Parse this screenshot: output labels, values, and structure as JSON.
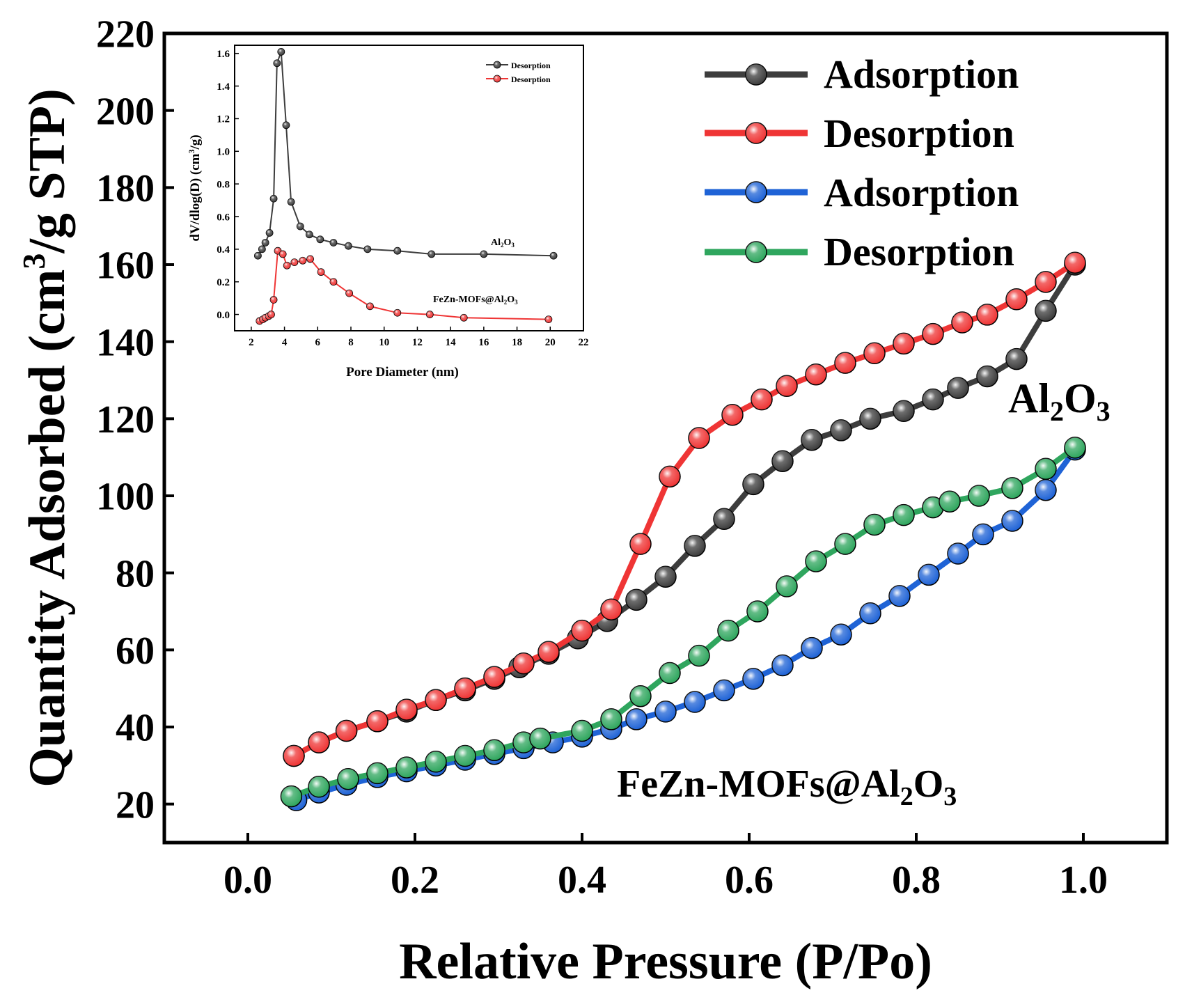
{
  "main_chart": {
    "chart_data": {
      "type": "line",
      "xlabel": "Relative Pressure (P/Po)",
      "ylabel": "Quantity Adsorbed (cm³/g STP)",
      "ylabel_parts": {
        "pre": "Quantity Adsorbed (cm",
        "sup": "3",
        "post": "/g STP)"
      },
      "xlim": [
        -0.1,
        1.1
      ],
      "ylim": [
        10,
        220
      ],
      "xticks": [
        0.0,
        0.2,
        0.4,
        0.6,
        0.8,
        1.0
      ],
      "xtick_labels": [
        "0.0",
        "0.2",
        "0.4",
        "0.6",
        "0.8",
        "1.0"
      ],
      "yticks": [
        20,
        40,
        60,
        80,
        100,
        120,
        140,
        160,
        180,
        200,
        220
      ],
      "ytick_labels": [
        "20",
        "40",
        "60",
        "80",
        "100",
        "120",
        "140",
        "160",
        "180",
        "200",
        "220"
      ],
      "series": [
        {
          "name": "Adsorption",
          "sample": "Al2O3",
          "color": "#3d3d3d",
          "x": [
            0.055,
            0.085,
            0.118,
            0.155,
            0.19,
            0.225,
            0.26,
            0.295,
            0.325,
            0.36,
            0.395,
            0.43,
            0.465,
            0.5,
            0.535,
            0.57,
            0.605,
            0.64,
            0.675,
            0.71,
            0.745,
            0.785,
            0.82,
            0.85,
            0.885,
            0.92,
            0.955,
            0.99
          ],
          "y": [
            32.5,
            36,
            39,
            41.5,
            44,
            47,
            49.5,
            52.5,
            55.5,
            59,
            63,
            67.5,
            73,
            79,
            87,
            94,
            103,
            109,
            114.5,
            117,
            120,
            122,
            125,
            128,
            131,
            135.5,
            148,
            160
          ]
        },
        {
          "name": "Desorption",
          "sample": "Al2O3",
          "color": "#ef3535",
          "x": [
            0.055,
            0.085,
            0.118,
            0.155,
            0.19,
            0.225,
            0.26,
            0.295,
            0.33,
            0.36,
            0.4,
            0.435,
            0.47,
            0.505,
            0.54,
            0.58,
            0.615,
            0.645,
            0.68,
            0.715,
            0.75,
            0.785,
            0.82,
            0.855,
            0.885,
            0.92,
            0.955,
            0.99
          ],
          "y": [
            32.5,
            36,
            39,
            41.5,
            44.5,
            47,
            50,
            53,
            56.5,
            59.5,
            65,
            70.5,
            87.5,
            105,
            115,
            121,
            125,
            128.5,
            131.5,
            134.5,
            137,
            139.5,
            142,
            145,
            147,
            151,
            155.5,
            160.5
          ]
        },
        {
          "name": "Adsorption",
          "sample": "FeZn-MOFs@Al2O3",
          "color": "#1f63d6",
          "x": [
            0.058,
            0.085,
            0.118,
            0.155,
            0.19,
            0.225,
            0.26,
            0.295,
            0.33,
            0.365,
            0.4,
            0.435,
            0.465,
            0.5,
            0.535,
            0.57,
            0.605,
            0.64,
            0.675,
            0.71,
            0.745,
            0.78,
            0.815,
            0.85,
            0.88,
            0.915,
            0.955,
            0.99
          ],
          "y": [
            21,
            23,
            25,
            27,
            28.5,
            30,
            31.5,
            33,
            34.5,
            36,
            37.5,
            39.5,
            42,
            44,
            46.5,
            49.5,
            52.5,
            56,
            60.5,
            64,
            69.5,
            74,
            79.5,
            85,
            90,
            93.5,
            101.5,
            112
          ]
        },
        {
          "name": "Desorption",
          "sample": "FeZn-MOFs@Al2O3",
          "color": "#2fa65e",
          "x": [
            0.052,
            0.085,
            0.12,
            0.155,
            0.19,
            0.225,
            0.26,
            0.295,
            0.33,
            0.35,
            0.4,
            0.435,
            0.47,
            0.505,
            0.54,
            0.575,
            0.61,
            0.645,
            0.68,
            0.715,
            0.75,
            0.785,
            0.82,
            0.84,
            0.875,
            0.915,
            0.955,
            0.99
          ],
          "y": [
            22,
            24.5,
            26.5,
            28,
            29.5,
            31,
            32.5,
            34,
            36,
            37,
            39,
            42,
            48,
            54,
            58.5,
            65,
            70,
            76.5,
            83,
            87.5,
            92.5,
            95,
            97,
            98.5,
            100,
            102,
            107,
            112.5
          ]
        }
      ],
      "legend": {
        "position": "top-right",
        "labels": [
          "Adsorption",
          "Desorption",
          "Adsorption",
          "Desorption"
        ]
      },
      "annotations": [
        {
          "text": "Al₂O₃",
          "parts": {
            "a": "Al",
            "b": "2",
            "c": "O",
            "d": "3"
          }
        },
        {
          "text": "FeZn-MOFs@Al₂O₃",
          "parts": {
            "a": "FeZn-MOFs@Al",
            "b": "2",
            "c": "O",
            "d": "3"
          }
        }
      ]
    }
  },
  "inset_chart": {
    "chart_data": {
      "type": "line",
      "xlabel": "Pore Diameter (nm)",
      "ylabel": "dV/dlog(D) (cm³/g)",
      "ylabel_parts": {
        "pre": "dV/dlog(D) (cm",
        "sup": "3",
        "post": "/g)"
      },
      "xlim": [
        1.0,
        22.0
      ],
      "ylim": [
        -0.1,
        1.65
      ],
      "xticks": [
        2,
        4,
        6,
        8,
        10,
        12,
        14,
        16,
        18,
        20,
        22
      ],
      "xtick_labels": [
        "2",
        "4",
        "6",
        "8",
        "10",
        "12",
        "14",
        "16",
        "18",
        "20",
        "22"
      ],
      "yticks": [
        0.0,
        0.2,
        0.4,
        0.6,
        0.8,
        1.0,
        1.2,
        1.4,
        1.6
      ],
      "ytick_labels": [
        "0.0",
        "0.2",
        "0.4",
        "0.6",
        "0.8",
        "1.0",
        "1.2",
        "1.4",
        "1.6"
      ],
      "series": [
        {
          "name": "Desorption",
          "sample": "Al2O3",
          "color": "#3d3d3d",
          "x": [
            2.4,
            2.65,
            2.85,
            3.1,
            3.35,
            3.55,
            3.8,
            4.1,
            4.4,
            4.95,
            5.5,
            6.15,
            6.95,
            7.85,
            9.0,
            10.8,
            12.85,
            16.0,
            20.2
          ],
          "y": [
            0.36,
            0.4,
            0.44,
            0.5,
            0.71,
            1.54,
            1.61,
            1.16,
            0.69,
            0.54,
            0.49,
            0.46,
            0.44,
            0.42,
            0.4,
            0.39,
            0.37,
            0.37,
            0.36
          ]
        },
        {
          "name": "Desorption",
          "sample": "FeZn-MOFs@Al2O3",
          "color": "#ef3535",
          "x": [
            2.5,
            2.7,
            2.85,
            3.05,
            3.2,
            3.35,
            3.6,
            3.9,
            4.15,
            4.6,
            5.1,
            5.55,
            6.2,
            6.95,
            7.9,
            9.15,
            10.8,
            12.75,
            14.8,
            19.9
          ],
          "y": [
            -0.04,
            -0.03,
            -0.02,
            -0.01,
            0.0,
            0.09,
            0.39,
            0.37,
            0.3,
            0.32,
            0.33,
            0.34,
            0.26,
            0.2,
            0.13,
            0.05,
            0.01,
            0.0,
            -0.02,
            -0.03
          ]
        }
      ],
      "legend": {
        "position": "top-right",
        "labels": [
          "Desorption",
          "Desorption"
        ]
      },
      "annotations": [
        {
          "text": "Al₂O₃",
          "parts": {
            "a": "Al",
            "b": "2",
            "c": "O",
            "d": "3"
          }
        },
        {
          "text": "FeZn-MOFs@Al₂O₃",
          "parts": {
            "a": "FeZn-MOFs@Al",
            "b": "2",
            "c": "O",
            "d": "3"
          }
        }
      ]
    }
  }
}
